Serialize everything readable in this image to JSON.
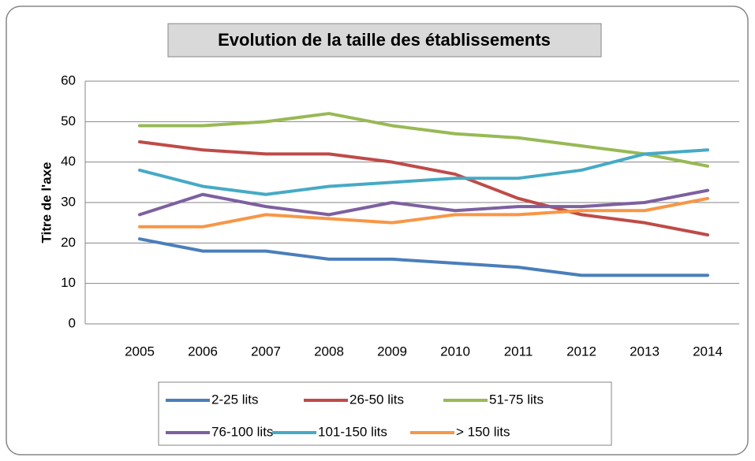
{
  "chart_data": {
    "type": "line",
    "title": "Evolution de la taille des établissements",
    "y_label": "Titre de l'axe",
    "categories": [
      "2005",
      "2006",
      "2007",
      "2008",
      "2009",
      "2010",
      "2011",
      "2012",
      "2013",
      "2014"
    ],
    "series": [
      {
        "name": "2-25 lits",
        "color": "#4a7ebb",
        "values": [
          21,
          18,
          18,
          16,
          16,
          15,
          14,
          12,
          12,
          12
        ]
      },
      {
        "name": "26-50 lits",
        "color": "#be4b48",
        "values": [
          45,
          43,
          42,
          42,
          40,
          37,
          31,
          27,
          25,
          22
        ]
      },
      {
        "name": "51-75 lits",
        "color": "#98b954",
        "values": [
          49,
          49,
          50,
          52,
          49,
          47,
          46,
          44,
          42,
          39
        ]
      },
      {
        "name": "76-100 lits",
        "color": "#7d60a0",
        "values": [
          27,
          32,
          29,
          27,
          30,
          28,
          29,
          29,
          30,
          33
        ]
      },
      {
        "name": "101-150 lits",
        "color": "#46aac5",
        "values": [
          38,
          34,
          32,
          34,
          35,
          36,
          36,
          38,
          42,
          43
        ]
      },
      {
        "name": "> 150 lits",
        "color": "#f79646",
        "values": [
          24,
          24,
          27,
          26,
          25,
          27,
          27,
          28,
          28,
          31
        ]
      }
    ],
    "ylim": [
      0,
      60
    ],
    "yticks": [
      0,
      10,
      20,
      30,
      40,
      50,
      60
    ],
    "grid": true,
    "legend": "bottom"
  }
}
